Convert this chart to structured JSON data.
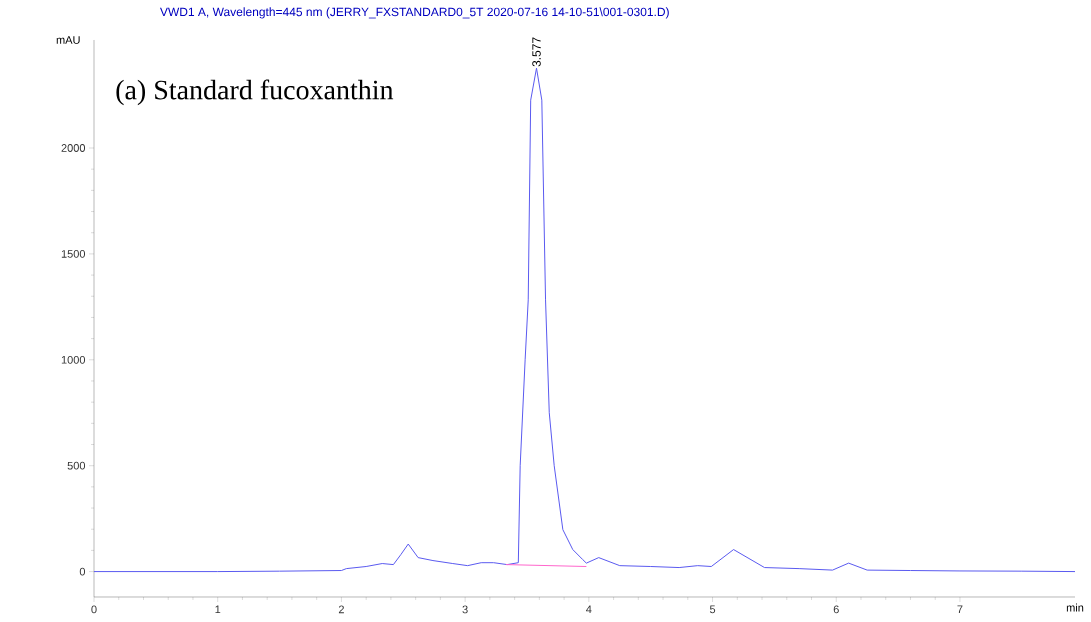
{
  "chart_data": {
    "type": "line",
    "title": "VWD1 A, Wavelength=445 nm (JERRY_FXSTANDARD0_5T 2020-07-16 14-10-51\\001-0301.D)",
    "xlabel": "min",
    "ylabel": "mAU",
    "xlim": [
      0,
      7.93
    ],
    "xticks": [
      0,
      1,
      2,
      3,
      4,
      5,
      6,
      7
    ],
    "ylim": [
      -120,
      2510
    ],
    "yticks": [
      0,
      500,
      1000,
      1500,
      2000
    ],
    "series": [
      {
        "color": "#5a5af0",
        "x": [
          0,
          1,
          1.5,
          2,
          2.04,
          2.2,
          2.33,
          2.42,
          2.48,
          2.54,
          2.62,
          2.74,
          2.9,
          3.02,
          3.13,
          3.23,
          3.34,
          3.43,
          3.445,
          3.485,
          3.51,
          3.53,
          3.577,
          3.62,
          3.65,
          3.68,
          3.72,
          3.79,
          3.87,
          3.95,
          3.98,
          4.08,
          4.25,
          4.5,
          4.73,
          4.88,
          4.99,
          5.17,
          5.42,
          5.7,
          5.97,
          6.1,
          6.25,
          6.6,
          7.0,
          7.5,
          7.93
        ],
        "values": [
          0,
          0,
          2,
          5,
          14,
          24,
          38,
          33,
          80,
          130,
          66,
          52,
          38,
          28,
          42,
          42,
          33,
          42,
          500,
          1000,
          1283,
          2226,
          2377,
          2226,
          1283,
          750,
          500,
          198,
          104,
          57,
          40,
          66,
          28,
          24,
          19,
          28,
          24,
          104,
          19,
          14,
          7,
          40,
          7,
          5,
          3,
          2,
          0
        ]
      },
      {
        "color": "#ff66cc",
        "x": [
          3.33,
          3.98
        ],
        "values": [
          33,
          24
        ]
      }
    ],
    "annotations": [
      {
        "text": "3.577",
        "x": 3.577,
        "y": 2377
      },
      "(a) Standard fucoxanthin"
    ]
  }
}
